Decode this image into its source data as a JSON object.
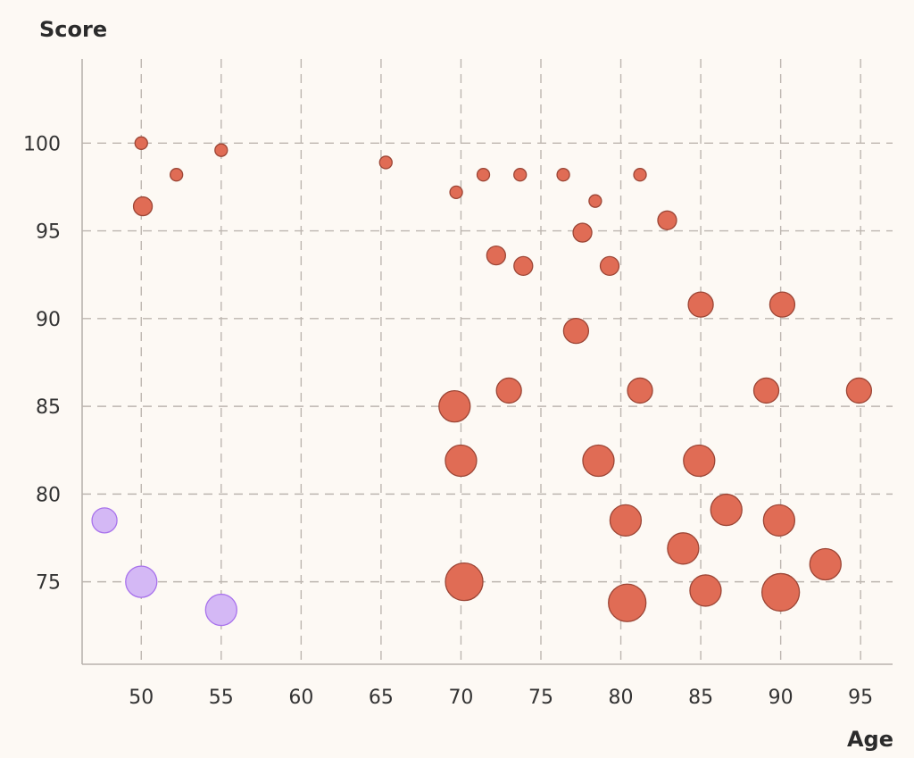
{
  "chart_data": {
    "type": "scatter",
    "xlabel": "Age",
    "ylabel": "Score",
    "xlim": [
      46.3,
      97.0
    ],
    "ylim": [
      70.3,
      104.8
    ],
    "xticks": [
      50,
      55,
      60,
      65,
      70,
      75,
      80,
      85,
      90,
      95
    ],
    "yticks": [
      75,
      80,
      85,
      90,
      95,
      100
    ],
    "grid": true,
    "series": [
      {
        "color": "#e06c55",
        "stroke": "#9c4636",
        "points": [
          {
            "x": 50.0,
            "y": 100.0,
            "size": 1
          },
          {
            "x": 52.2,
            "y": 98.2,
            "size": 1
          },
          {
            "x": 55.0,
            "y": 99.6,
            "size": 1
          },
          {
            "x": 50.1,
            "y": 96.4,
            "size": 2
          },
          {
            "x": 65.3,
            "y": 98.9,
            "size": 1
          },
          {
            "x": 69.7,
            "y": 97.2,
            "size": 1
          },
          {
            "x": 71.4,
            "y": 98.2,
            "size": 1
          },
          {
            "x": 73.7,
            "y": 98.2,
            "size": 1
          },
          {
            "x": 76.4,
            "y": 98.2,
            "size": 1
          },
          {
            "x": 78.4,
            "y": 96.7,
            "size": 1
          },
          {
            "x": 81.2,
            "y": 98.2,
            "size": 1
          },
          {
            "x": 82.9,
            "y": 95.6,
            "size": 2
          },
          {
            "x": 77.6,
            "y": 94.9,
            "size": 2
          },
          {
            "x": 72.2,
            "y": 93.6,
            "size": 2
          },
          {
            "x": 73.9,
            "y": 93.0,
            "size": 2
          },
          {
            "x": 79.3,
            "y": 93.0,
            "size": 2
          },
          {
            "x": 85.0,
            "y": 90.8,
            "size": 3
          },
          {
            "x": 90.1,
            "y": 90.8,
            "size": 3
          },
          {
            "x": 77.2,
            "y": 89.3,
            "size": 3
          },
          {
            "x": 73.0,
            "y": 85.9,
            "size": 3
          },
          {
            "x": 81.2,
            "y": 85.9,
            "size": 3
          },
          {
            "x": 89.1,
            "y": 85.9,
            "size": 3
          },
          {
            "x": 94.9,
            "y": 85.9,
            "size": 3
          },
          {
            "x": 69.6,
            "y": 85.0,
            "size": 4
          },
          {
            "x": 70.0,
            "y": 81.9,
            "size": 4
          },
          {
            "x": 78.6,
            "y": 81.9,
            "size": 4
          },
          {
            "x": 84.9,
            "y": 81.9,
            "size": 4
          },
          {
            "x": 80.3,
            "y": 78.5,
            "size": 4
          },
          {
            "x": 86.6,
            "y": 79.1,
            "size": 4
          },
          {
            "x": 89.9,
            "y": 78.5,
            "size": 4
          },
          {
            "x": 83.9,
            "y": 76.9,
            "size": 4
          },
          {
            "x": 92.8,
            "y": 76.0,
            "size": 4
          },
          {
            "x": 70.2,
            "y": 75.0,
            "size": 5
          },
          {
            "x": 85.3,
            "y": 74.5,
            "size": 4
          },
          {
            "x": 90.0,
            "y": 74.4,
            "size": 5
          },
          {
            "x": 80.4,
            "y": 73.8,
            "size": 5
          }
        ]
      },
      {
        "color": "#d4b8f5",
        "stroke": "#a872ec",
        "points": [
          {
            "x": 47.7,
            "y": 78.5,
            "size": 3
          },
          {
            "x": 50.0,
            "y": 75.0,
            "size": 4
          },
          {
            "x": 55.0,
            "y": 73.4,
            "size": 4
          }
        ]
      }
    ]
  }
}
